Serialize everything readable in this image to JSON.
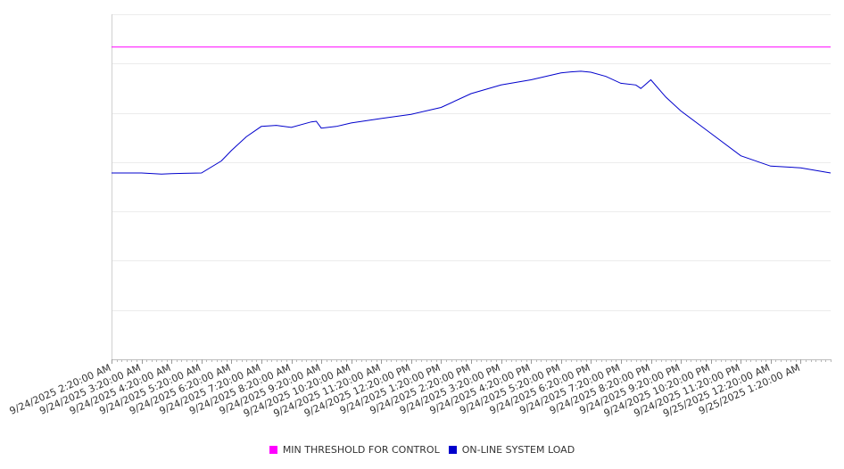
{
  "chart_data": {
    "type": "line",
    "title": "",
    "xlabel": "",
    "ylabel": "",
    "grid": true,
    "legend_position": "bottom",
    "x_tick_labels": [
      "9/24/2025 2:20:00 AM",
      "9/24/2025 3:20:00 AM",
      "9/24/2025 4:20:00 AM",
      "9/24/2025 5:20:00 AM",
      "9/24/2025 6:20:00 AM",
      "9/24/2025 7:20:00 AM",
      "9/24/2025 8:20:00 AM",
      "9/24/2025 9:20:00 AM",
      "9/24/2025 10:20:00 AM",
      "9/24/2025 11:20:00 AM",
      "9/24/2025 12:20:00 PM",
      "9/24/2025 1:20:00 PM",
      "9/24/2025 2:20:00 PM",
      "9/24/2025 3:20:00 PM",
      "9/24/2025 4:20:00 PM",
      "9/24/2025 5:20:00 PM",
      "9/24/2025 6:20:00 PM",
      "9/24/2025 7:20:00 PM",
      "9/24/2025 8:20:00 PM",
      "9/24/2025 9:20:00 PM",
      "9/24/2025 10:20:00 PM",
      "9/24/2025 11:20:00 PM",
      "9/25/2025 12:20:00 AM",
      "9/25/2025 1:20:00 AM"
    ],
    "y_gridlines": 7,
    "series": [
      {
        "name": "MIN THRESHOLD FOR CONTROL",
        "color": "#ff00ff",
        "x": [
          "9/24/2025 2:20:00 AM",
          "9/25/2025 2:20:00 AM"
        ],
        "values": [
          0.905,
          0.905
        ]
      },
      {
        "name": "ON-LINE SYSTEM LOAD",
        "color": "#0000cc",
        "x": [
          "9/24/2025 2:20:00 AM",
          "9/24/2025 3:20:00 AM",
          "9/24/2025 4:00:00 AM",
          "9/24/2025 4:20:00 AM",
          "9/24/2025 4:45:00 AM",
          "9/24/2025 5:20:00 AM",
          "9/24/2025 6:00:00 AM",
          "9/24/2025 6:20:00 AM",
          "9/24/2025 6:50:00 AM",
          "9/24/2025 7:20:00 AM",
          "9/24/2025 7:50:00 AM",
          "9/24/2025 8:20:00 AM",
          "9/24/2025 9:00:00 AM",
          "9/24/2025 9:10:00 AM",
          "9/24/2025 9:20:00 AM",
          "9/24/2025 9:50:00 AM",
          "9/24/2025 10:20:00 AM",
          "9/24/2025 11:20:00 AM",
          "9/24/2025 12:20:00 PM",
          "9/24/2025 1:20:00 PM",
          "9/24/2025 2:20:00 PM",
          "9/24/2025 3:20:00 PM",
          "9/24/2025 4:20:00 PM",
          "9/24/2025 5:20:00 PM",
          "9/24/2025 5:40:00 PM",
          "9/24/2025 6:00:00 PM",
          "9/24/2025 6:20:00 PM",
          "9/24/2025 6:50:00 PM",
          "9/24/2025 7:20:00 PM",
          "9/24/2025 7:50:00 PM",
          "9/24/2025 8:00:00 PM",
          "9/24/2025 8:20:00 PM",
          "9/24/2025 8:50:00 PM",
          "9/24/2025 9:20:00 PM",
          "9/24/2025 10:20:00 PM",
          "9/24/2025 11:20:00 PM",
          "9/25/2025 12:20:00 AM",
          "9/25/2025 1:20:00 AM",
          "9/25/2025 2:20:00 AM"
        ],
        "values": [
          0.54,
          0.54,
          0.537,
          0.538,
          0.539,
          0.54,
          0.575,
          0.605,
          0.645,
          0.675,
          0.678,
          0.672,
          0.688,
          0.69,
          0.67,
          0.675,
          0.685,
          0.698,
          0.71,
          0.73,
          0.77,
          0.795,
          0.81,
          0.83,
          0.833,
          0.835,
          0.832,
          0.82,
          0.8,
          0.795,
          0.785,
          0.81,
          0.76,
          0.72,
          0.655,
          0.59,
          0.56,
          0.555,
          0.54
        ]
      }
    ]
  }
}
